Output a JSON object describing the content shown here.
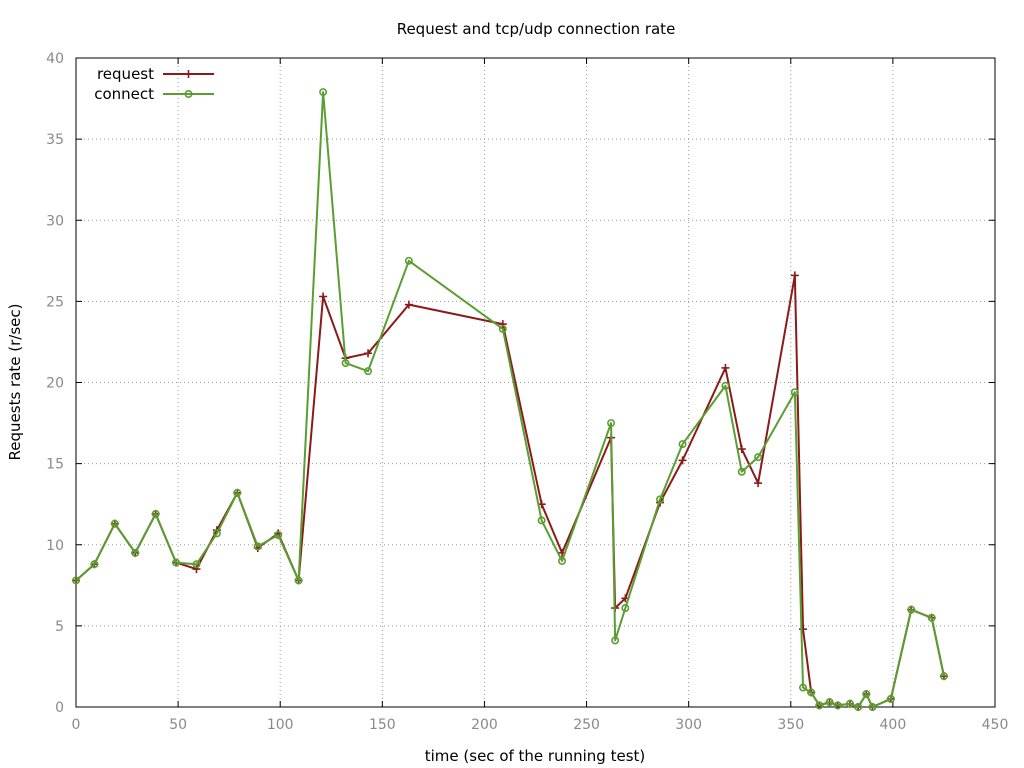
{
  "chart_data": {
    "type": "line",
    "title": "Request and tcp/udp connection rate",
    "xlabel": "time (sec of the running test)",
    "ylabel": "Requests rate (r/sec)",
    "xlim": [
      0,
      450
    ],
    "ylim": [
      0,
      40
    ],
    "xticks": [
      0,
      50,
      100,
      150,
      200,
      250,
      300,
      350,
      400,
      450
    ],
    "yticks": [
      0,
      5,
      10,
      15,
      20,
      25,
      30,
      35,
      40
    ],
    "grid": true,
    "legend_position": "top-left",
    "series": [
      {
        "name": "request",
        "color": "#8b1a1a",
        "marker": "plus",
        "points": [
          [
            0,
            7.8
          ],
          [
            9,
            8.8
          ],
          [
            19,
            11.3
          ],
          [
            29,
            9.5
          ],
          [
            39,
            11.9
          ],
          [
            49,
            8.9
          ],
          [
            59,
            8.5
          ],
          [
            69,
            10.9
          ],
          [
            79,
            13.2
          ],
          [
            89,
            9.8
          ],
          [
            99,
            10.7
          ],
          [
            109,
            7.8
          ],
          [
            121,
            25.3
          ],
          [
            132,
            21.5
          ],
          [
            143,
            21.8
          ],
          [
            163,
            24.8
          ],
          [
            209,
            23.6
          ],
          [
            228,
            12.5
          ],
          [
            238,
            9.5
          ],
          [
            262,
            16.6
          ],
          [
            264,
            6.1
          ],
          [
            269,
            6.7
          ],
          [
            286,
            12.6
          ],
          [
            297,
            15.2
          ],
          [
            318,
            20.9
          ],
          [
            326,
            15.9
          ],
          [
            334,
            13.8
          ],
          [
            352,
            26.6
          ],
          [
            356,
            4.8
          ],
          [
            360,
            0.9
          ],
          [
            364,
            0.1
          ],
          [
            369,
            0.3
          ],
          [
            373,
            0.1
          ],
          [
            379,
            0.2
          ],
          [
            383,
            0
          ],
          [
            387,
            0.8
          ],
          [
            390,
            0
          ],
          [
            399,
            0.5
          ],
          [
            409,
            6.0
          ],
          [
            419,
            5.5
          ],
          [
            425,
            1.9
          ]
        ]
      },
      {
        "name": "connect",
        "color": "#5a9e32",
        "marker": "circle",
        "points": [
          [
            0,
            7.8
          ],
          [
            9,
            8.8
          ],
          [
            19,
            11.3
          ],
          [
            29,
            9.5
          ],
          [
            39,
            11.9
          ],
          [
            49,
            8.9
          ],
          [
            59,
            8.8
          ],
          [
            69,
            10.7
          ],
          [
            79,
            13.2
          ],
          [
            89,
            9.9
          ],
          [
            99,
            10.6
          ],
          [
            109,
            7.8
          ],
          [
            121,
            37.9
          ],
          [
            132,
            21.2
          ],
          [
            143,
            20.7
          ],
          [
            163,
            27.5
          ],
          [
            209,
            23.3
          ],
          [
            228,
            11.5
          ],
          [
            238,
            9.0
          ],
          [
            262,
            17.5
          ],
          [
            264,
            4.1
          ],
          [
            269,
            6.1
          ],
          [
            286,
            12.8
          ],
          [
            297,
            16.2
          ],
          [
            318,
            19.8
          ],
          [
            326,
            14.5
          ],
          [
            334,
            15.4
          ],
          [
            352,
            19.4
          ],
          [
            356,
            1.2
          ],
          [
            360,
            0.9
          ],
          [
            364,
            0.1
          ],
          [
            369,
            0.3
          ],
          [
            373,
            0.1
          ],
          [
            379,
            0.2
          ],
          [
            383,
            0
          ],
          [
            387,
            0.8
          ],
          [
            390,
            0
          ],
          [
            399,
            0.5
          ],
          [
            409,
            6.0
          ],
          [
            419,
            5.5
          ],
          [
            425,
            1.9
          ]
        ]
      }
    ]
  }
}
